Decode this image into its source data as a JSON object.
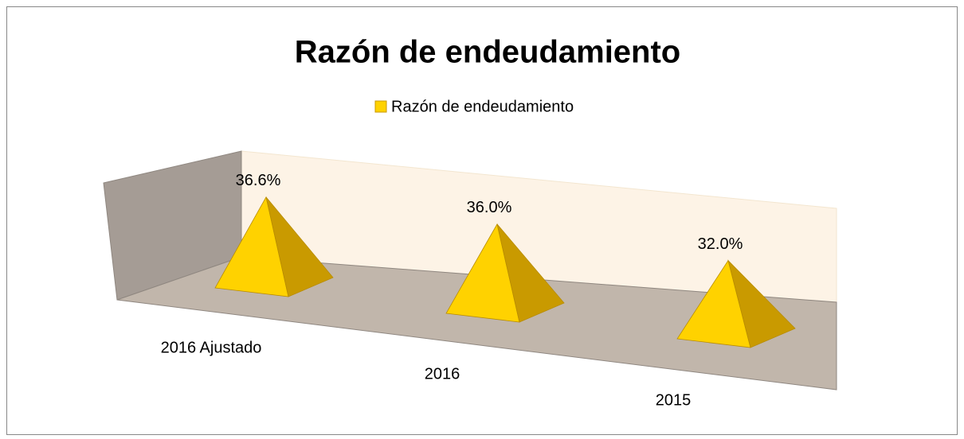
{
  "chart_data": {
    "type": "pyramid",
    "title": "Razón de endeudamiento",
    "categories": [
      "2016 Ajustado",
      "2016",
      "2015"
    ],
    "series": [
      {
        "name": "Razón de endeudamiento",
        "color": "#ffd200",
        "values": [
          36.6,
          36.0,
          32.0
        ],
        "value_labels": [
          "36.6%",
          "36.0%",
          "32.0%"
        ]
      }
    ]
  }
}
